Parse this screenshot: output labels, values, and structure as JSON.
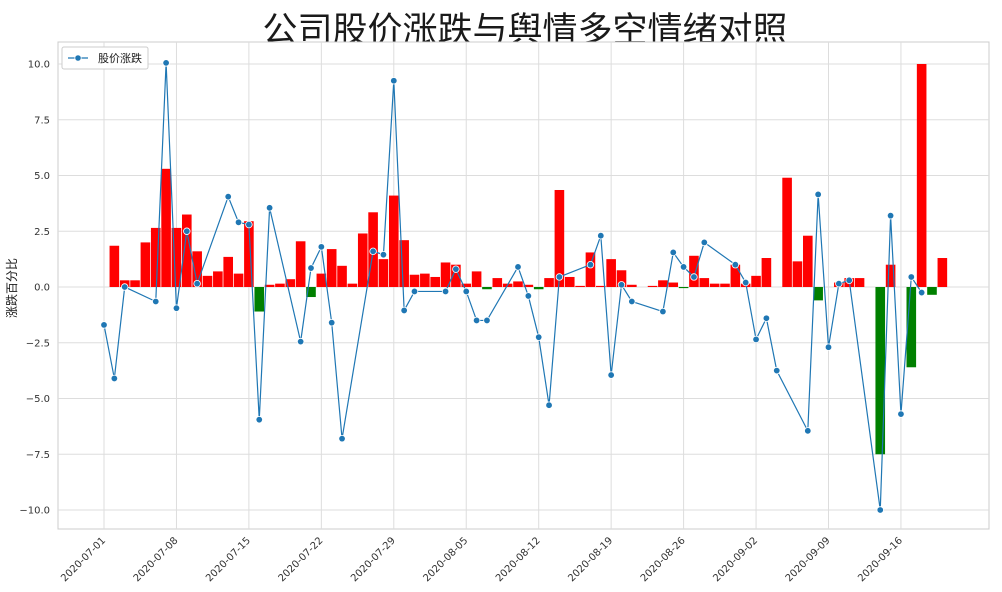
{
  "chart_data": {
    "type": "bar+line",
    "title": "公司股价涨跌与舆情多空情绪对照",
    "ylabel": "涨跌百分比",
    "ylim": [
      -11,
      11
    ],
    "yticks": [
      -10.0,
      -7.5,
      -5.0,
      -2.5,
      0.0,
      2.5,
      5.0,
      7.5,
      10.0
    ],
    "ytick_labels": [
      "−10.0",
      "−7.5",
      "−5.0",
      "−2.5",
      "0.0",
      "2.5",
      "5.0",
      "7.5",
      "10.0"
    ],
    "x_start": "2020-07-01",
    "xticks": [
      "2020-07-01",
      "2020-07-08",
      "2020-07-15",
      "2020-07-22",
      "2020-07-29",
      "2020-08-05",
      "2020-08-12",
      "2020-08-19",
      "2020-08-26",
      "2020-09-02",
      "2020-09-09",
      "2020-09-16"
    ],
    "grid": true,
    "legend_position": "top-left",
    "legend": [
      "股价涨跌"
    ],
    "bar_colors": {
      "positive": "#ff0000",
      "negative": "#008000"
    },
    "line_color": "#1f77b4",
    "bar_series": {
      "dates": [
        "2020-07-02",
        "2020-07-03",
        "2020-07-04",
        "2020-07-05",
        "2020-07-06",
        "2020-07-07",
        "2020-07-08",
        "2020-07-09",
        "2020-07-10",
        "2020-07-11",
        "2020-07-12",
        "2020-07-13",
        "2020-07-14",
        "2020-07-15",
        "2020-07-16",
        "2020-07-17",
        "2020-07-18",
        "2020-07-19",
        "2020-07-20",
        "2020-07-21",
        "2020-07-22",
        "2020-07-23",
        "2020-07-24",
        "2020-07-25",
        "2020-07-26",
        "2020-07-27",
        "2020-07-28",
        "2020-07-29",
        "2020-07-30",
        "2020-07-31",
        "2020-08-01",
        "2020-08-02",
        "2020-08-03",
        "2020-08-04",
        "2020-08-05",
        "2020-08-06",
        "2020-08-07",
        "2020-08-08",
        "2020-08-09",
        "2020-08-10",
        "2020-08-11",
        "2020-08-12",
        "2020-08-13",
        "2020-08-14",
        "2020-08-15",
        "2020-08-16",
        "2020-08-17",
        "2020-08-18",
        "2020-08-19",
        "2020-08-20",
        "2020-08-21",
        "2020-08-22",
        "2020-08-23",
        "2020-08-24",
        "2020-08-25",
        "2020-08-26",
        "2020-08-27",
        "2020-08-28",
        "2020-08-29",
        "2020-08-30",
        "2020-08-31",
        "2020-09-01",
        "2020-09-02",
        "2020-09-03",
        "2020-09-04",
        "2020-09-05",
        "2020-09-06",
        "2020-09-07",
        "2020-09-08",
        "2020-09-09",
        "2020-09-10",
        "2020-09-11",
        "2020-09-12",
        "2020-09-13",
        "2020-09-14",
        "2020-09-15",
        "2020-09-16",
        "2020-09-17",
        "2020-09-18",
        "2020-09-19",
        "2020-09-20"
      ],
      "values": [
        1.85,
        0.3,
        0.3,
        2.0,
        2.65,
        5.3,
        2.65,
        3.25,
        1.6,
        0.5,
        0.7,
        1.35,
        0.6,
        2.95,
        -1.1,
        0.1,
        0.15,
        0.35,
        2.05,
        -0.45,
        0.6,
        1.7,
        0.95,
        0.15,
        2.4,
        3.35,
        1.25,
        4.1,
        2.1,
        0.55,
        0.6,
        0.45,
        1.1,
        1.0,
        0.15,
        0.7,
        -0.1,
        0.4,
        0.15,
        0.25,
        0.1,
        -0.1,
        0.4,
        4.35,
        0.45,
        0.05,
        1.55,
        0.05,
        1.25,
        0.75,
        0.1,
        0.0,
        0.05,
        0.3,
        0.2,
        -0.05,
        1.4,
        0.4,
        0.15,
        0.15,
        1.0,
        0.15,
        0.5,
        1.3,
        0.0,
        4.9,
        1.15,
        2.3,
        -0.6,
        0.0,
        0.2,
        0.4,
        0.4,
        0.0,
        -7.5,
        1.0,
        0.0,
        -3.6,
        10.0,
        -0.35,
        1.3
      ]
    },
    "line_series": {
      "name": "股价涨跌",
      "dates": [
        "2020-07-01",
        "2020-07-02",
        "2020-07-03",
        "2020-07-06",
        "2020-07-07",
        "2020-07-08",
        "2020-07-09",
        "2020-07-10",
        "2020-07-13",
        "2020-07-14",
        "2020-07-15",
        "2020-07-16",
        "2020-07-17",
        "2020-07-20",
        "2020-07-21",
        "2020-07-22",
        "2020-07-23",
        "2020-07-24",
        "2020-07-27",
        "2020-07-28",
        "2020-07-29",
        "2020-07-30",
        "2020-07-31",
        "2020-08-03",
        "2020-08-04",
        "2020-08-05",
        "2020-08-06",
        "2020-08-07",
        "2020-08-10",
        "2020-08-11",
        "2020-08-12",
        "2020-08-13",
        "2020-08-14",
        "2020-08-17",
        "2020-08-18",
        "2020-08-19",
        "2020-08-20",
        "2020-08-21",
        "2020-08-24",
        "2020-08-25",
        "2020-08-26",
        "2020-08-27",
        "2020-08-28",
        "2020-08-31",
        "2020-09-01",
        "2020-09-02",
        "2020-09-03",
        "2020-09-04",
        "2020-09-07",
        "2020-09-08",
        "2020-09-09",
        "2020-09-10",
        "2020-09-11",
        "2020-09-14",
        "2020-09-15",
        "2020-09-16",
        "2020-09-17",
        "2020-09-18"
      ],
      "values": [
        -1.7,
        -4.1,
        0.0,
        -0.65,
        10.05,
        -0.95,
        2.5,
        0.15,
        4.05,
        2.9,
        2.8,
        -5.95,
        3.55,
        -2.45,
        0.85,
        1.8,
        -1.6,
        -6.8,
        1.6,
        1.45,
        9.25,
        -1.05,
        -0.2,
        -0.2,
        0.8,
        -0.2,
        -1.5,
        -1.5,
        0.9,
        -0.4,
        -2.25,
        -5.3,
        0.45,
        1.0,
        2.3,
        -3.95,
        0.1,
        -0.65,
        -1.1,
        1.55,
        0.9,
        0.45,
        2.0,
        1.0,
        0.2,
        -2.35,
        -1.4,
        -3.75,
        -6.45,
        4.15,
        -2.7,
        0.15,
        0.3,
        -10.0,
        3.2,
        -5.7,
        0.45,
        -0.25
      ]
    }
  }
}
